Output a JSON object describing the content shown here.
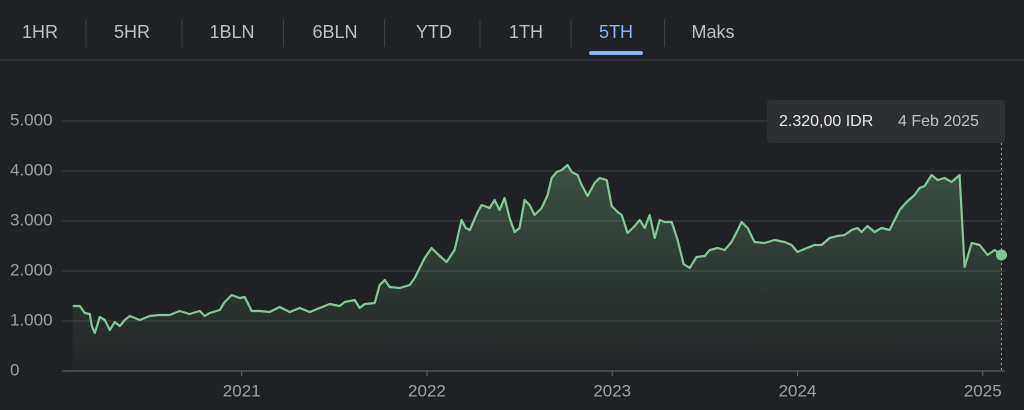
{
  "tabs": [
    "1HR",
    "5HR",
    "1BLN",
    "6BLN",
    "YTD",
    "1TH",
    "5TH",
    "Maks"
  ],
  "active_tab": 6,
  "chart_data": {
    "type": "line",
    "color": "#81c995",
    "grid": true,
    "x": [
      2020.088,
      2020.126,
      2020.153,
      2020.18,
      2020.191,
      2020.207,
      2020.234,
      2020.261,
      2020.288,
      2020.315,
      2020.342,
      2020.369,
      2020.396,
      2020.45,
      2020.504,
      2020.557,
      2020.611,
      2020.665,
      2020.719,
      2020.773,
      2020.8,
      2020.827,
      2020.881,
      2020.908,
      2020.946,
      2020.989,
      2021.016,
      2021.054,
      2021.097,
      2021.151,
      2021.205,
      2021.259,
      2021.313,
      2021.367,
      2021.421,
      2021.475,
      2021.529,
      2021.556,
      2021.61,
      2021.637,
      2021.664,
      2021.718,
      2021.745,
      2021.772,
      2021.799,
      2021.853,
      2021.907,
      2021.934,
      2021.961,
      2021.988,
      2022.025,
      2022.069,
      2022.106,
      2022.149,
      2022.187,
      2022.209,
      2022.231,
      2022.274,
      2022.295,
      2022.338,
      2022.365,
      2022.392,
      2022.419,
      2022.446,
      2022.473,
      2022.5,
      2022.527,
      2022.554,
      2022.581,
      2022.619,
      2022.651,
      2022.673,
      2022.7,
      2022.727,
      2022.759,
      2022.781,
      2022.813,
      2022.835,
      2022.867,
      2022.905,
      2022.932,
      2022.97,
      2022.997,
      2023.029,
      2023.051,
      2023.083,
      2023.121,
      2023.148,
      2023.175,
      2023.202,
      2023.229,
      2023.256,
      2023.283,
      2023.321,
      2023.353,
      2023.385,
      2023.418,
      2023.455,
      2023.499,
      2023.526,
      2023.569,
      2023.607,
      2023.644,
      2023.677,
      2023.698,
      2023.731,
      2023.768,
      2023.822,
      2023.876,
      2023.93,
      2023.968,
      2024.0,
      2024.038,
      2024.092,
      2024.13,
      2024.173,
      2024.216,
      2024.254,
      2024.292,
      2024.324,
      2024.346,
      2024.378,
      2024.416,
      2024.454,
      2024.497,
      2024.524,
      2024.551,
      2024.589,
      2024.632,
      2024.659,
      2024.686,
      2024.724,
      2024.756,
      2024.794,
      2024.832,
      2024.875,
      2024.902,
      2024.94,
      2024.983,
      2025.026,
      2025.064,
      2025.101
    ],
    "values": [
      1300,
      1300,
      1160,
      1140,
      900,
      760,
      1080,
      1020,
      820,
      980,
      900,
      1020,
      1100,
      1020,
      1100,
      1120,
      1120,
      1200,
      1140,
      1200,
      1100,
      1160,
      1220,
      1380,
      1520,
      1460,
      1480,
      1200,
      1200,
      1180,
      1280,
      1180,
      1260,
      1180,
      1260,
      1340,
      1300,
      1380,
      1420,
      1260,
      1340,
      1360,
      1720,
      1820,
      1680,
      1660,
      1720,
      1860,
      2060,
      2260,
      2460,
      2300,
      2180,
      2420,
      3020,
      2860,
      2820,
      3180,
      3320,
      3260,
      3420,
      3220,
      3460,
      3060,
      2780,
      2860,
      3420,
      3320,
      3120,
      3260,
      3520,
      3860,
      3980,
      4020,
      4120,
      3980,
      3920,
      3720,
      3500,
      3760,
      3860,
      3820,
      3300,
      3180,
      3120,
      2760,
      2900,
      3020,
      2860,
      3120,
      2660,
      3020,
      2980,
      2980,
      2620,
      2140,
      2060,
      2280,
      2300,
      2420,
      2460,
      2420,
      2580,
      2820,
      2980,
      2860,
      2580,
      2560,
      2620,
      2580,
      2520,
      2380,
      2440,
      2520,
      2520,
      2660,
      2700,
      2720,
      2820,
      2860,
      2780,
      2900,
      2780,
      2860,
      2820,
      3020,
      3220,
      3380,
      3520,
      3660,
      3700,
      3920,
      3820,
      3860,
      3780,
      3920,
      2080,
      2560,
      2520,
      2320,
      2420,
      2320
    ],
    "xlim": [
      2020.03,
      2025.12
    ],
    "xticks": [
      2021,
      2022,
      2023,
      2024,
      2025
    ],
    "ylim": [
      0,
      5000
    ],
    "yticks": [
      0,
      {
        "value": 1000,
        "label": "1.000"
      },
      {
        "value": 2000,
        "label": "2.000"
      },
      {
        "value": 3000,
        "label": "3.000"
      },
      {
        "value": 4000,
        "label": "4.000"
      },
      {
        "value": 5000,
        "label": "5.000"
      }
    ],
    "tooltip": {
      "label": "2.320,00 IDR",
      "date": "4 Feb 2025"
    }
  }
}
